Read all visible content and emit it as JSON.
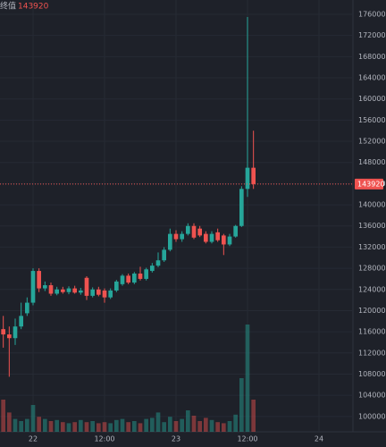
{
  "chart_data": {
    "type": "candlestick",
    "last_label": "终值",
    "last_price": 143920,
    "x": [
      -5,
      -4,
      -3,
      -2,
      -1,
      0,
      1,
      2,
      3,
      4,
      5,
      6,
      7,
      8,
      9,
      10,
      11,
      12,
      13,
      14,
      15,
      16,
      17,
      18,
      19,
      20,
      21,
      22,
      23,
      24,
      25,
      26,
      27,
      28,
      29,
      30,
      31,
      32,
      33,
      34,
      35,
      36,
      37
    ],
    "open": [
      116500,
      115500,
      114800,
      117000,
      119500,
      121500,
      127500,
      124200,
      124800,
      123200,
      124000,
      123500,
      124200,
      123400,
      126200,
      122800,
      124000,
      123800,
      122500,
      123800,
      125000,
      126600,
      125300,
      127000,
      126000,
      127500,
      128500,
      129500,
      131500,
      134500,
      133500,
      134500,
      136000,
      135500,
      134500,
      133000,
      134800,
      134200,
      132500,
      134000,
      136000,
      143000,
      147000
    ],
    "high": [
      119000,
      117000,
      118500,
      121500,
      122500,
      128000,
      128000,
      125500,
      125300,
      124500,
      124500,
      124600,
      124700,
      124300,
      126500,
      124400,
      124500,
      124200,
      124200,
      125800,
      126900,
      127000,
      127300,
      128300,
      128100,
      129000,
      131000,
      132000,
      135500,
      135200,
      135000,
      136500,
      136500,
      136000,
      135000,
      135000,
      135500,
      134500,
      134500,
      136200,
      143500,
      175500,
      154000
    ],
    "low": [
      113000,
      107500,
      113500,
      116500,
      119000,
      121000,
      123500,
      123700,
      122800,
      122900,
      123200,
      123100,
      123200,
      123000,
      122000,
      122500,
      122700,
      121500,
      122200,
      123500,
      124700,
      125000,
      125000,
      125700,
      125700,
      127200,
      128200,
      129200,
      131200,
      133000,
      133000,
      134200,
      133500,
      133900,
      132700,
      132700,
      133000,
      130500,
      132200,
      133800,
      135800,
      141500,
      143000
    ],
    "close": [
      115500,
      114800,
      117000,
      119000,
      121500,
      127500,
      124200,
      124800,
      123200,
      124000,
      123500,
      124200,
      123400,
      123800,
      122800,
      124000,
      123000,
      122500,
      123800,
      125500,
      126600,
      125300,
      127000,
      126000,
      127800,
      128500,
      129500,
      131500,
      134500,
      133500,
      134500,
      136000,
      133800,
      134200,
      133000,
      134500,
      133300,
      132500,
      134000,
      136000,
      143000,
      147000,
      143920
    ],
    "volume": [
      30,
      18,
      12,
      10,
      12,
      25,
      14,
      12,
      10,
      11,
      9,
      8,
      9,
      11,
      9,
      10,
      8,
      9,
      8,
      11,
      12,
      9,
      10,
      8,
      12,
      13,
      18,
      9,
      14,
      10,
      12,
      20,
      15,
      10,
      13,
      11,
      9,
      8,
      10,
      16,
      50,
      100,
      30
    ],
    "vlim": [
      0,
      100
    ],
    "xlim": [
      -5.55,
      53.7
    ],
    "xticks": [
      {
        "value": 0,
        "label": "22"
      },
      {
        "value": 12,
        "label": "12:00"
      },
      {
        "value": 24,
        "label": "23"
      },
      {
        "value": 36,
        "label": "12:00"
      },
      {
        "value": 48,
        "label": "24"
      }
    ],
    "ylim": [
      97100,
      178700
    ],
    "yticks": [
      100000,
      104000,
      108000,
      112000,
      116000,
      120000,
      124000,
      128000,
      132000,
      136000,
      140000,
      144000,
      148000,
      152000,
      156000,
      160000,
      164000,
      168000,
      172000,
      176000
    ],
    "up_color": "#26a69a",
    "down_color": "#ef5350",
    "grid": true
  }
}
